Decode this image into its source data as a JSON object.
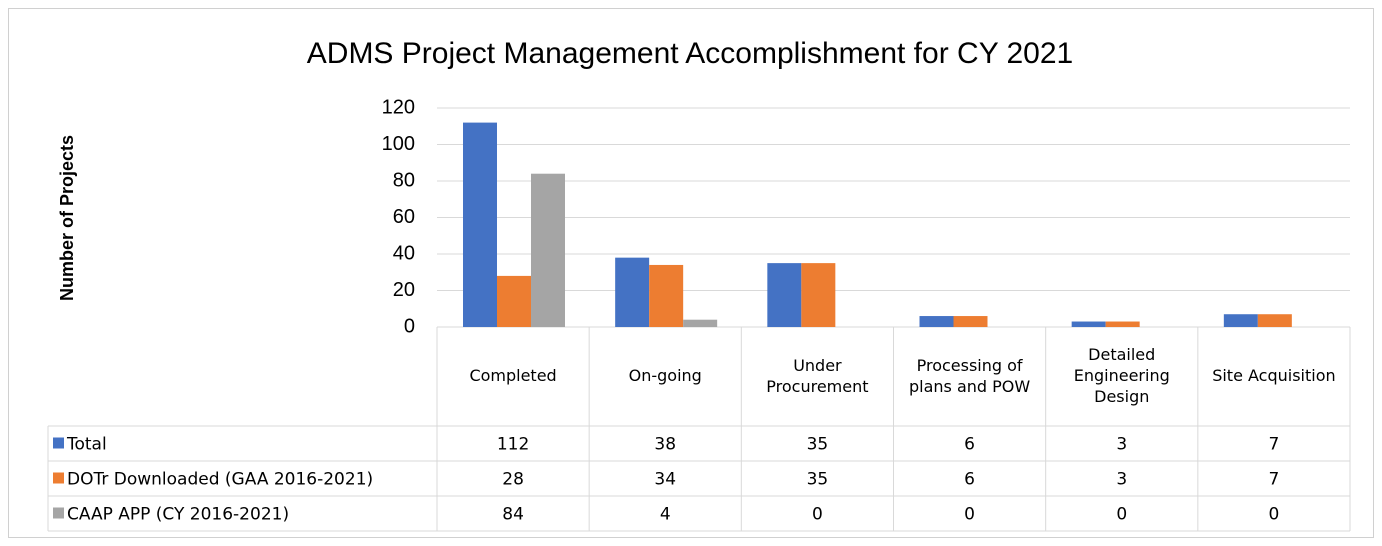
{
  "chart_data": {
    "type": "bar",
    "title": "ADMS Project Management Accomplishment for CY 2021",
    "y_label": "Number of Projects",
    "categories": [
      "Completed",
      "On-going",
      "Under Procurement",
      "Processing of plans and POW",
      "Detailed Engineering Design",
      "Site Acquisition"
    ],
    "series": [
      {
        "name": "Total",
        "color": "#4472c4",
        "values": [
          112,
          38,
          35,
          6,
          3,
          7
        ]
      },
      {
        "name": "DOTr Downloaded (GAA 2016-2021)",
        "color": "#ed7d31",
        "values": [
          28,
          34,
          35,
          6,
          3,
          7
        ]
      },
      {
        "name": "CAAP APP (CY 2016-2021)",
        "color": "#a5a5a5",
        "values": [
          84,
          4,
          0,
          0,
          0,
          0
        ]
      }
    ],
    "ylim": [
      0,
      120
    ],
    "yticks": [
      0,
      20,
      40,
      60,
      80,
      100,
      120
    ],
    "grid": true,
    "data_table": true
  }
}
